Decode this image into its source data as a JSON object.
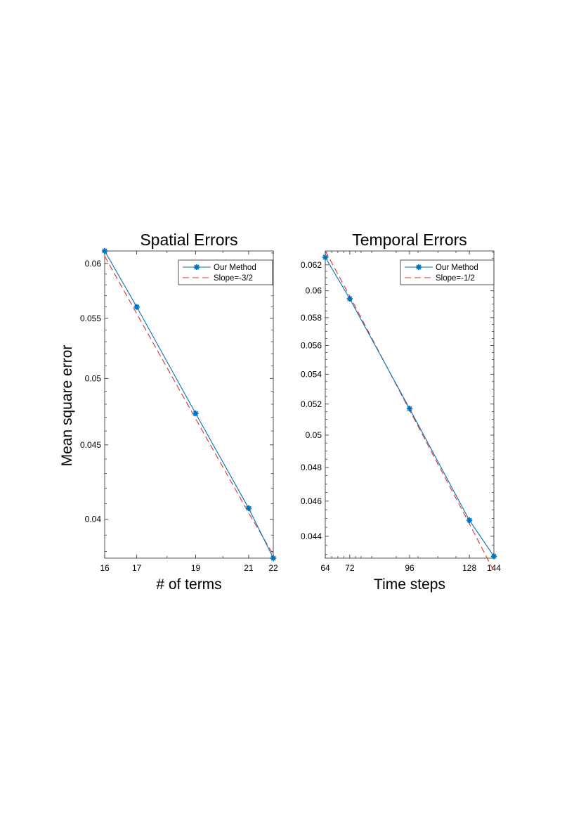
{
  "figure": {
    "ylabel": "Mean square error"
  },
  "chart_data": [
    {
      "type": "line",
      "title": "Spatial Errors",
      "xlabel": "# of terms",
      "ylabel": "Mean square error",
      "xscale": "log",
      "yscale": "log",
      "xlim": [
        16,
        22
      ],
      "ylim": [
        0.0376,
        0.0612
      ],
      "xticks": [
        16,
        17,
        19,
        21,
        22
      ],
      "yticks": [
        0.04,
        0.045,
        0.05,
        0.055,
        0.06
      ],
      "ytick_labels": [
        "0.04",
        "0.045",
        "0.05",
        "0.055",
        "0.06"
      ],
      "x": [
        16,
        17,
        19,
        21,
        22
      ],
      "legend_position": "top-right",
      "series": [
        {
          "name": "Our Method",
          "style": "solid-with-asterisk-markers",
          "color": "#0072BD",
          "x": [
            16,
            17,
            19,
            21,
            22
          ],
          "values": [
            0.0612,
            0.056,
            0.0473,
            0.0407,
            0.0376
          ]
        },
        {
          "name": "Slope=-3/2",
          "style": "dashed",
          "color": "#D95319",
          "x": [
            16,
            17,
            19,
            21,
            22
          ],
          "values": [
            0.0607,
            0.0554,
            0.0469,
            0.0404,
            0.0378
          ]
        }
      ],
      "grid": false
    },
    {
      "type": "line",
      "title": "Temporal Errors",
      "xlabel": "Time steps",
      "ylabel": "",
      "xscale": "log",
      "yscale": "log",
      "xlim": [
        64,
        144
      ],
      "ylim": [
        0.0428,
        0.0631
      ],
      "xticks": [
        64,
        72,
        96,
        128,
        144
      ],
      "yticks": [
        0.044,
        0.046,
        0.048,
        0.05,
        0.052,
        0.054,
        0.056,
        0.058,
        0.06,
        0.062
      ],
      "ytick_labels": [
        "0.044",
        "0.046",
        "0.048",
        "0.05",
        "0.052",
        "0.054",
        "0.056",
        "0.058",
        "0.06",
        "0.062"
      ],
      "x": [
        64,
        72,
        96,
        128,
        144
      ],
      "legend_position": "top-right",
      "series": [
        {
          "name": "Our Method",
          "style": "solid-with-asterisk-markers",
          "color": "#0072BD",
          "x": [
            64,
            72,
            96,
            128,
            144
          ],
          "values": [
            0.0626,
            0.0594,
            0.0517,
            0.0449,
            0.0429
          ]
        },
        {
          "name": "Slope=-1/2",
          "style": "dashed",
          "color": "#D95319",
          "x": [
            64,
            72,
            96,
            128,
            144
          ],
          "values": [
            0.0631,
            0.0596,
            0.0516,
            0.0447,
            0.0421
          ]
        }
      ],
      "grid": false
    }
  ]
}
